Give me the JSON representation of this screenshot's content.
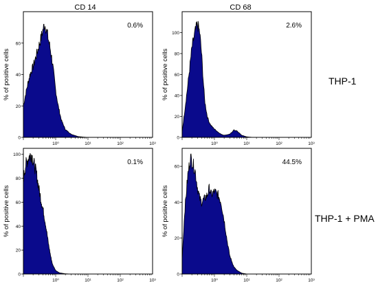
{
  "columns": [
    "CD 14",
    "CD 68"
  ],
  "rows": [
    "THP-1",
    "THP-1 + PMA"
  ],
  "chart_data": [
    {
      "type": "area",
      "panel": "CD 14 / THP-1",
      "annotation": "0.6%",
      "ylabel": "% of positive cells",
      "xscale": "log",
      "xlim": [
        0.1,
        1000
      ],
      "ylim": [
        0,
        80
      ],
      "yticks": [
        0,
        20,
        40,
        60
      ],
      "xticks": [
        {
          "v": 1,
          "label": "10⁰"
        },
        {
          "v": 10,
          "label": "10¹"
        },
        {
          "v": 100,
          "label": "10²"
        },
        {
          "v": 1000,
          "label": "10³"
        }
      ],
      "fill": "#0a0a8c",
      "x": [
        0.1,
        0.13,
        0.16,
        0.2,
        0.25,
        0.3,
        0.35,
        0.4,
        0.45,
        0.5,
        0.55,
        0.6,
        0.7,
        0.8,
        0.9,
        1.0,
        1.2,
        1.5,
        2,
        3,
        5,
        8,
        10
      ],
      "y": [
        20,
        32,
        40,
        45,
        52,
        58,
        63,
        68,
        72,
        70,
        66,
        62,
        55,
        47,
        38,
        30,
        20,
        11,
        5,
        2,
        0.5,
        0.1,
        0
      ]
    },
    {
      "type": "area",
      "panel": "CD 68 / THP-1",
      "annotation": "2.6%",
      "ylabel": "% of positive cells",
      "xscale": "log",
      "xlim": [
        0.1,
        1000
      ],
      "ylim": [
        0,
        120
      ],
      "yticks": [
        0,
        20,
        40,
        60,
        80,
        100
      ],
      "xticks": [
        {
          "v": 1,
          "label": "10⁰"
        },
        {
          "v": 10,
          "label": "10¹"
        },
        {
          "v": 100,
          "label": "10²"
        },
        {
          "v": 1000,
          "label": "10³"
        }
      ],
      "fill": "#0a0a8c",
      "x": [
        0.1,
        0.15,
        0.2,
        0.25,
        0.3,
        0.35,
        0.4,
        0.45,
        0.5,
        0.6,
        0.7,
        0.8,
        1.0,
        1.3,
        1.6,
        2,
        3,
        4,
        5,
        7,
        10,
        15
      ],
      "y": [
        5,
        50,
        85,
        100,
        108,
        100,
        80,
        55,
        35,
        20,
        14,
        11,
        8,
        5,
        3,
        2,
        3,
        7,
        6,
        2,
        0.5,
        0
      ]
    },
    {
      "type": "area",
      "panel": "CD 14 / THP-1 + PMA",
      "annotation": "0.1%",
      "ylabel": "% of positive cells",
      "xscale": "log",
      "xlim": [
        0.1,
        1000
      ],
      "ylim": [
        0,
        105
      ],
      "yticks": [
        0,
        20,
        40,
        60,
        80,
        100
      ],
      "xticks": [
        {
          "v": 1,
          "label": "10⁰"
        },
        {
          "v": 10,
          "label": "10¹"
        },
        {
          "v": 100,
          "label": "10²"
        },
        {
          "v": 1000,
          "label": "10³"
        }
      ],
      "fill": "#0a0a8c",
      "x": [
        0.1,
        0.12,
        0.15,
        0.18,
        0.2,
        0.25,
        0.3,
        0.35,
        0.4,
        0.5,
        0.6,
        0.7,
        0.8,
        1.0,
        1.3,
        2,
        3
      ],
      "y": [
        80,
        92,
        98,
        100,
        95,
        85,
        72,
        62,
        55,
        40,
        25,
        15,
        8,
        3,
        1,
        0.2,
        0
      ]
    },
    {
      "type": "area",
      "panel": "CD 68 / THP-1 + PMA",
      "annotation": "44.5%",
      "ylabel": "% of positive cells",
      "xscale": "log",
      "xlim": [
        0.1,
        1000
      ],
      "ylim": [
        0,
        70
      ],
      "yticks": [
        0,
        20,
        40,
        60
      ],
      "xticks": [
        {
          "v": 1,
          "label": "10⁰"
        },
        {
          "v": 10,
          "label": "10¹"
        },
        {
          "v": 100,
          "label": "10²"
        },
        {
          "v": 1000,
          "label": "10³"
        }
      ],
      "fill": "#0a0a8c",
      "x": [
        0.1,
        0.12,
        0.15,
        0.18,
        0.2,
        0.25,
        0.3,
        0.35,
        0.4,
        0.5,
        0.6,
        0.7,
        0.8,
        1.0,
        1.3,
        1.6,
        2,
        2.5,
        3,
        4,
        5,
        7,
        10
      ],
      "y": [
        8,
        35,
        55,
        65,
        63,
        58,
        48,
        42,
        40,
        42,
        44,
        48,
        44,
        46,
        44,
        40,
        30,
        18,
        10,
        4,
        2,
        0.5,
        0
      ]
    }
  ]
}
